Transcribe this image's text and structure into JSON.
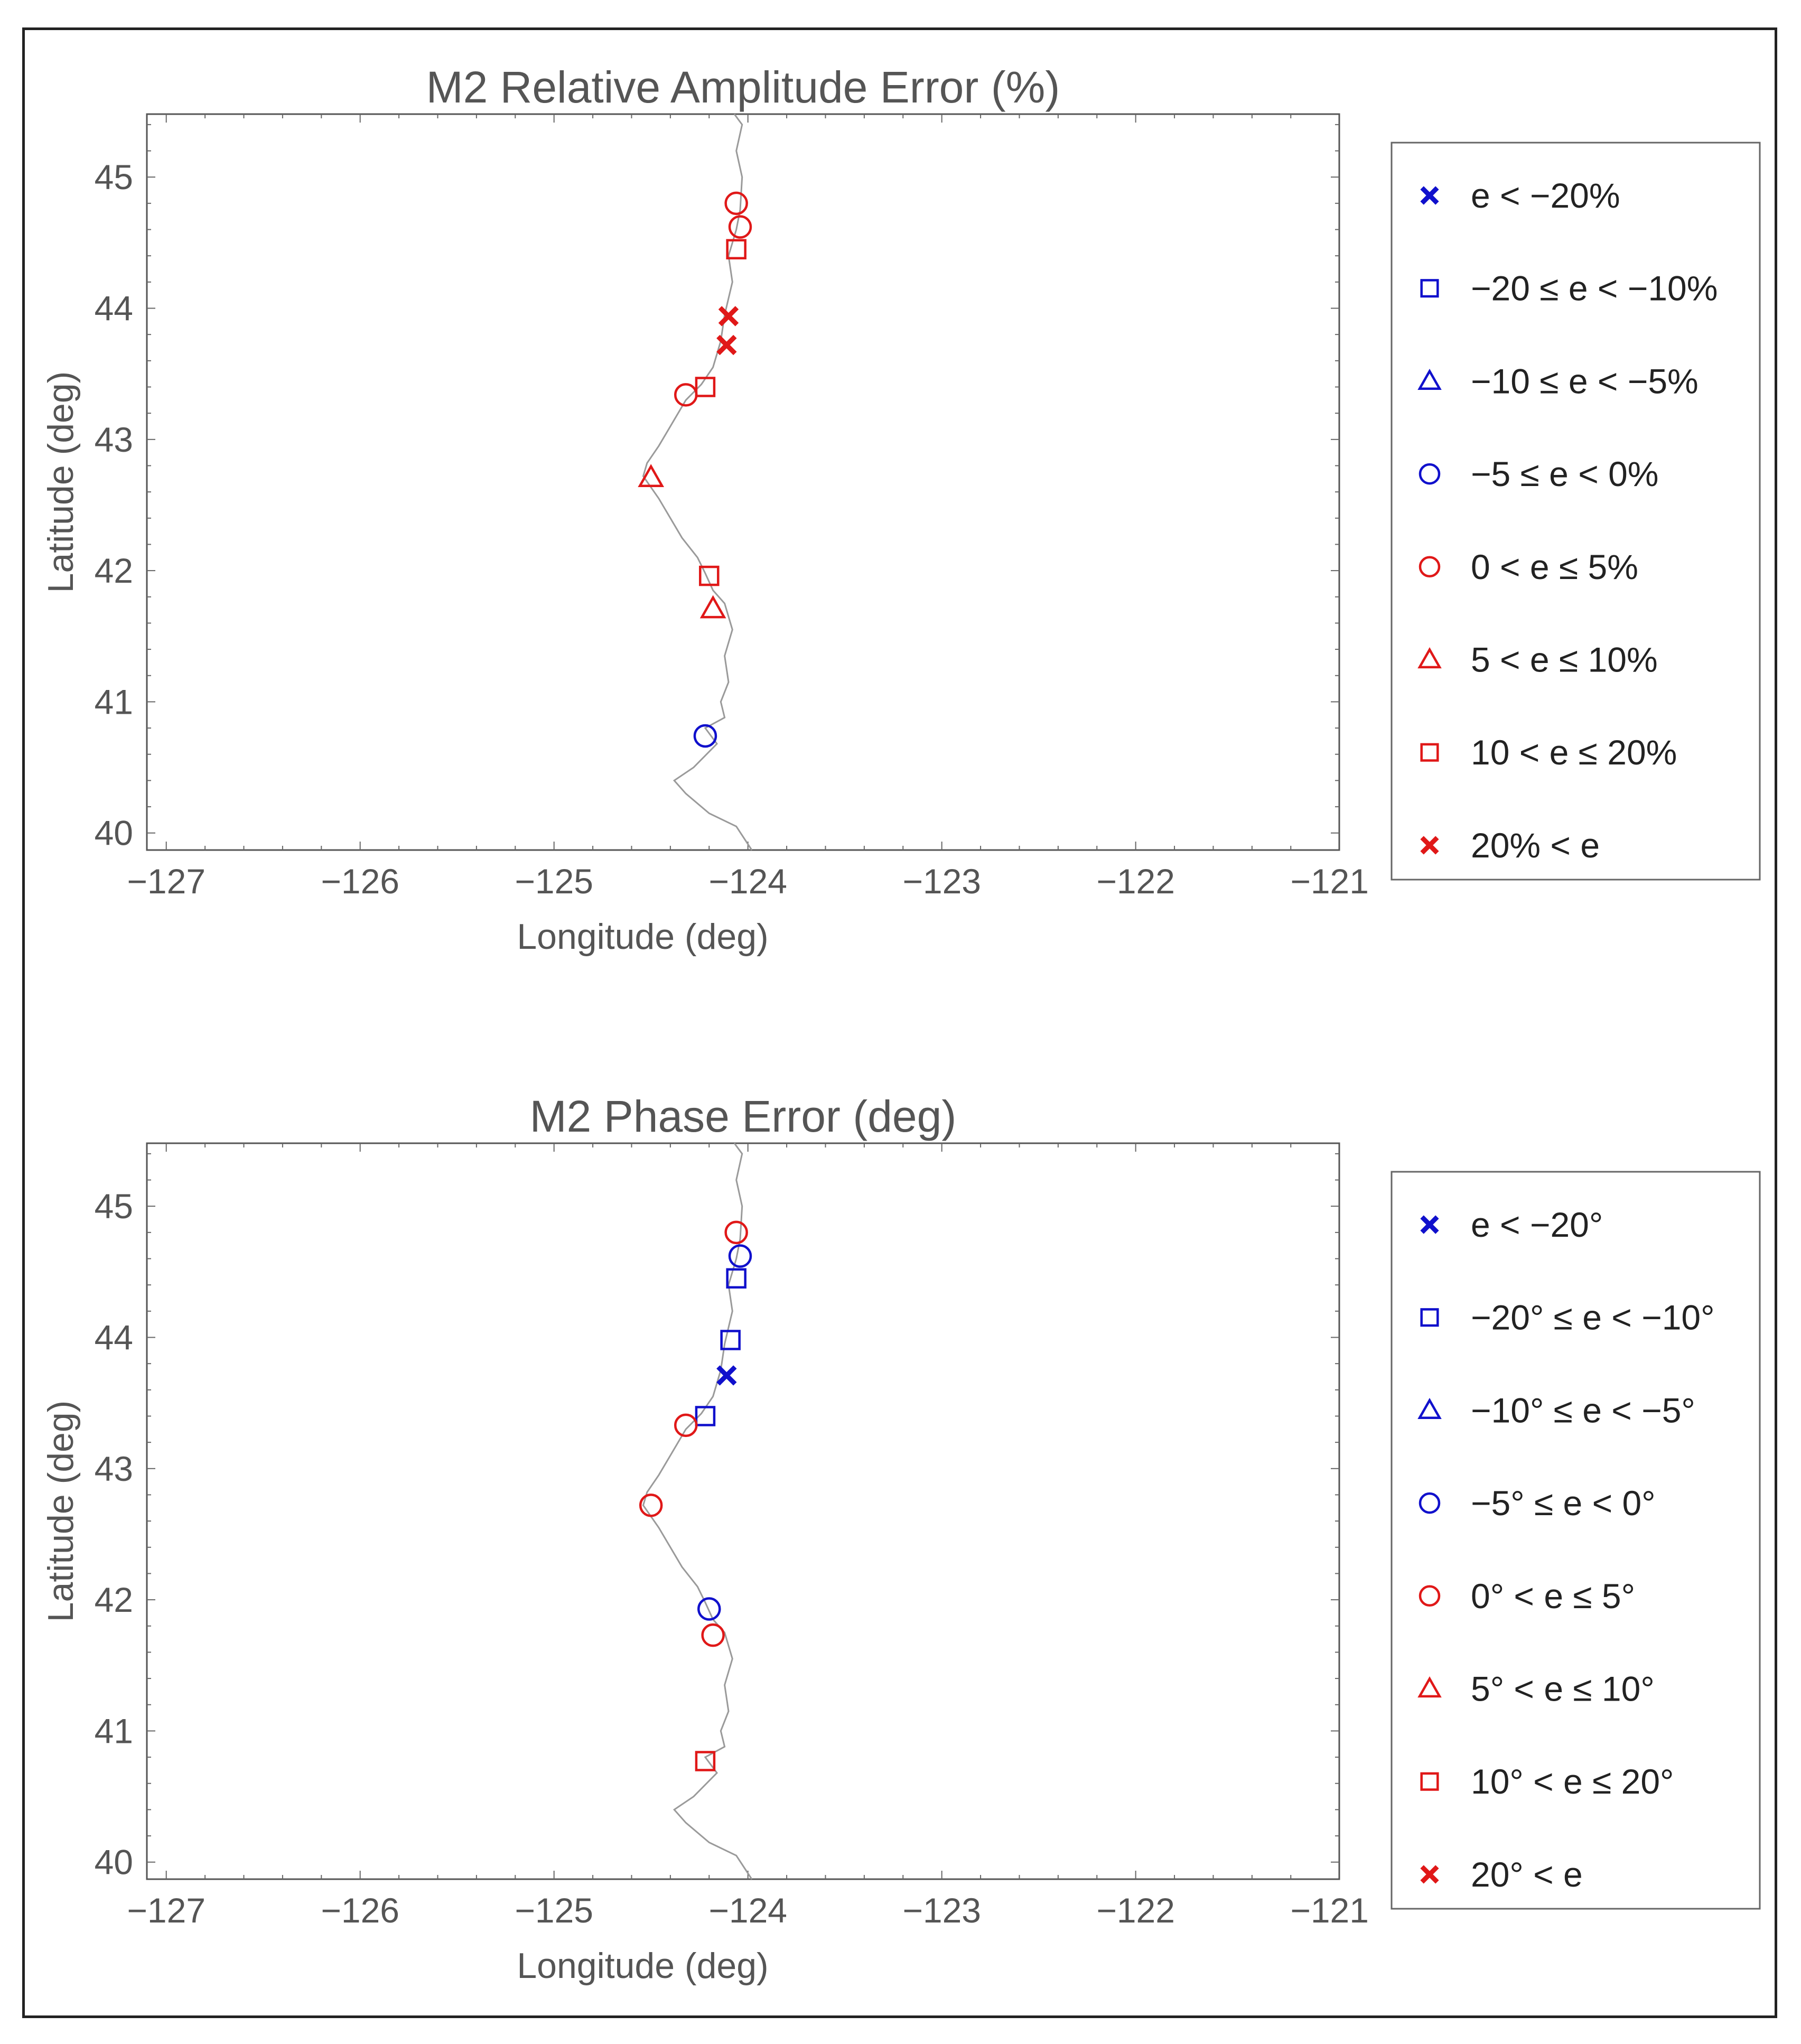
{
  "chart_data": [
    {
      "type": "scatter",
      "title": "M2 Relative Amplitude Error (%)",
      "xlabel": "Longitude (deg)",
      "ylabel": "Latitude (deg)",
      "xlim": [
        -127.1,
        -120.95
      ],
      "ylim": [
        39.87,
        45.48
      ],
      "xticks": [
        "−127",
        "−126",
        "−125",
        "−124",
        "−123",
        "−122",
        "−121"
      ],
      "yticks": [
        "40",
        "41",
        "42",
        "43",
        "44",
        "45"
      ],
      "legend": [
        {
          "label": "e < −20%",
          "marker": "x",
          "color": "#1010cc"
        },
        {
          "label": "−20 ≤ e < −10%",
          "marker": "square",
          "color": "#1010cc"
        },
        {
          "label": "−10 ≤ e < −5%",
          "marker": "triangle",
          "color": "#1010cc"
        },
        {
          "label": "−5 ≤ e < 0%",
          "marker": "circle",
          "color": "#1010cc"
        },
        {
          "label": "0 < e ≤ 5%",
          "marker": "circle",
          "color": "#e01818"
        },
        {
          "label": "5 < e ≤ 10%",
          "marker": "triangle",
          "color": "#e01818"
        },
        {
          "label": "10 < e ≤ 20%",
          "marker": "square",
          "color": "#e01818"
        },
        {
          "label": "20% < e",
          "marker": "x",
          "color": "#e01818"
        }
      ],
      "points": [
        {
          "lon": -124.06,
          "lat": 44.8,
          "cat": 4
        },
        {
          "lon": -124.04,
          "lat": 44.62,
          "cat": 4
        },
        {
          "lon": -124.06,
          "lat": 44.45,
          "cat": 6
        },
        {
          "lon": -124.1,
          "lat": 43.94,
          "cat": 7
        },
        {
          "lon": -124.11,
          "lat": 43.72,
          "cat": 7
        },
        {
          "lon": -124.22,
          "lat": 43.4,
          "cat": 6
        },
        {
          "lon": -124.32,
          "lat": 43.34,
          "cat": 4
        },
        {
          "lon": -124.5,
          "lat": 42.71,
          "cat": 5
        },
        {
          "lon": -124.2,
          "lat": 41.96,
          "cat": 6
        },
        {
          "lon": -124.18,
          "lat": 41.71,
          "cat": 5
        },
        {
          "lon": -124.22,
          "lat": 40.74,
          "cat": 3
        }
      ]
    },
    {
      "type": "scatter",
      "title": "M2 Phase Error (deg)",
      "xlabel": "Longitude (deg)",
      "ylabel": "Latitude (deg)",
      "xlim": [
        -127.1,
        -120.95
      ],
      "ylim": [
        39.87,
        45.48
      ],
      "xticks": [
        "−127",
        "−126",
        "−125",
        "−124",
        "−123",
        "−122",
        "−121"
      ],
      "yticks": [
        "40",
        "41",
        "42",
        "43",
        "44",
        "45"
      ],
      "legend": [
        {
          "label": "e < −20°",
          "marker": "x",
          "color": "#1010cc"
        },
        {
          "label": "−20° ≤ e < −10°",
          "marker": "square",
          "color": "#1010cc"
        },
        {
          "label": "−10° ≤ e < −5°",
          "marker": "triangle",
          "color": "#1010cc"
        },
        {
          "label": "−5° ≤ e < 0°",
          "marker": "circle",
          "color": "#1010cc"
        },
        {
          "label": "0° < e ≤ 5°",
          "marker": "circle",
          "color": "#e01818"
        },
        {
          "label": "5° < e ≤ 10°",
          "marker": "triangle",
          "color": "#e01818"
        },
        {
          "label": "10° < e ≤ 20°",
          "marker": "square",
          "color": "#e01818"
        },
        {
          "label": "20° < e",
          "marker": "x",
          "color": "#e01818"
        }
      ],
      "points": [
        {
          "lon": -124.06,
          "lat": 44.8,
          "cat": 4
        },
        {
          "lon": -124.04,
          "lat": 44.62,
          "cat": 3
        },
        {
          "lon": -124.06,
          "lat": 44.45,
          "cat": 1
        },
        {
          "lon": -124.09,
          "lat": 43.98,
          "cat": 1
        },
        {
          "lon": -124.11,
          "lat": 43.71,
          "cat": 0
        },
        {
          "lon": -124.22,
          "lat": 43.4,
          "cat": 1
        },
        {
          "lon": -124.32,
          "lat": 43.33,
          "cat": 4
        },
        {
          "lon": -124.5,
          "lat": 42.72,
          "cat": 4
        },
        {
          "lon": -124.2,
          "lat": 41.93,
          "cat": 3
        },
        {
          "lon": -124.18,
          "lat": 41.73,
          "cat": 4
        },
        {
          "lon": -124.22,
          "lat": 40.77,
          "cat": 6
        }
      ]
    }
  ],
  "coastline": [
    [
      -124.07,
      45.48
    ],
    [
      -124.03,
      45.4
    ],
    [
      -124.06,
      45.2
    ],
    [
      -124.03,
      45.0
    ],
    [
      -124.04,
      44.75
    ],
    [
      -124.06,
      44.6
    ],
    [
      -124.1,
      44.4
    ],
    [
      -124.08,
      44.2
    ],
    [
      -124.12,
      43.95
    ],
    [
      -124.14,
      43.75
    ],
    [
      -124.18,
      43.55
    ],
    [
      -124.24,
      43.42
    ],
    [
      -124.32,
      43.3
    ],
    [
      -124.4,
      43.1
    ],
    [
      -124.46,
      42.95
    ],
    [
      -124.52,
      42.82
    ],
    [
      -124.54,
      42.72
    ],
    [
      -124.46,
      42.55
    ],
    [
      -124.4,
      42.4
    ],
    [
      -124.34,
      42.25
    ],
    [
      -124.26,
      42.1
    ],
    [
      -124.22,
      41.98
    ],
    [
      -124.18,
      41.85
    ],
    [
      -124.12,
      41.75
    ],
    [
      -124.08,
      41.55
    ],
    [
      -124.12,
      41.35
    ],
    [
      -124.1,
      41.15
    ],
    [
      -124.14,
      41.0
    ],
    [
      -124.12,
      40.88
    ],
    [
      -124.22,
      40.8
    ],
    [
      -124.16,
      40.68
    ],
    [
      -124.28,
      40.5
    ],
    [
      -124.38,
      40.4
    ],
    [
      -124.32,
      40.3
    ],
    [
      -124.2,
      40.15
    ],
    [
      -124.06,
      40.05
    ],
    [
      -123.98,
      39.87
    ]
  ]
}
